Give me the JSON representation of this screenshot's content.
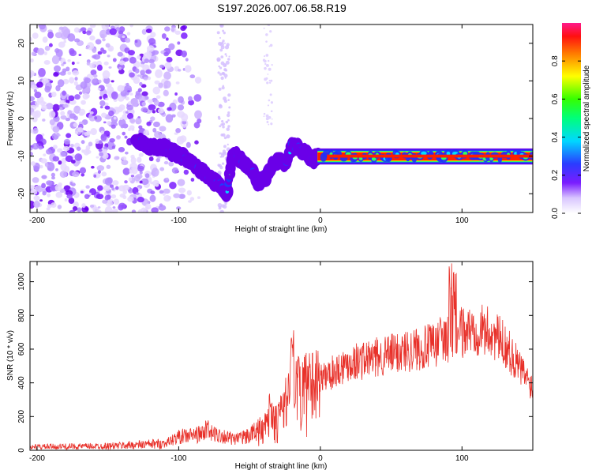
{
  "title": "S197.2026.007.06.58.R19",
  "chart_data": [
    {
      "type": "heatmap",
      "xlabel": "Height of straight line (km)",
      "ylabel": "Frequency (Hz)",
      "xlim": [
        -205,
        150
      ],
      "ylim": [
        -25,
        25
      ],
      "xticks": [
        -200,
        -100,
        0,
        100
      ],
      "xtick_labels": [
        "-200",
        "-100",
        "0",
        "100"
      ],
      "yticks": [
        -20,
        -10,
        0,
        10,
        20
      ],
      "ytick_labels": [
        "-20",
        "-10",
        "0",
        "10",
        "20"
      ],
      "colorbar": {
        "label": "Normalized spectral amplitude",
        "range": [
          0,
          1
        ],
        "ticks": [
          0.0,
          0.2,
          0.4,
          0.6,
          0.8
        ],
        "tick_labels": [
          "0.0",
          "0.2",
          "0.4",
          "0.6",
          "0.8"
        ]
      },
      "ridge": {
        "x": [
          -130,
          -120,
          -110,
          -100,
          -90,
          -80,
          -72,
          -66,
          -62,
          -58,
          -50,
          -44,
          -38,
          -34,
          -30,
          -24,
          -20,
          -15,
          -10,
          -5,
          0,
          5,
          10,
          20,
          40,
          60,
          80,
          100,
          120,
          150
        ],
        "y": [
          -6,
          -7.5,
          -8,
          -9.5,
          -12,
          -15,
          -17.5,
          -20,
          -9,
          -10.5,
          -13,
          -17,
          -15.5,
          -12.5,
          -11.5,
          -12,
          -7,
          -8,
          -9.5,
          -11,
          -9.5,
          -10,
          -10,
          -10,
          -10,
          -10,
          -10,
          -10.5,
          -10,
          -10
        ]
      }
    },
    {
      "type": "line",
      "xlabel": "Height of straight line (km)",
      "ylabel": "SNR (10 * v/v)",
      "xlim": [
        -205,
        150
      ],
      "ylim": [
        0,
        1120
      ],
      "xticks": [
        -200,
        -100,
        0,
        100
      ],
      "xtick_labels": [
        "-200",
        "-100",
        "0",
        "100"
      ],
      "yticks": [
        0,
        200,
        400,
        600,
        800,
        1000
      ],
      "ytick_labels": [
        "0",
        "200",
        "400",
        "600",
        "800",
        "1000"
      ],
      "color": "#e8312a",
      "envelope": {
        "x": [
          -205,
          -150,
          -110,
          -100,
          -90,
          -80,
          -70,
          -60,
          -50,
          -40,
          -30,
          -25,
          -20,
          -15,
          -10,
          0,
          10,
          20,
          40,
          60,
          80,
          90,
          95,
          100,
          110,
          120,
          130,
          140,
          150
        ],
        "y": [
          20,
          25,
          40,
          80,
          90,
          100,
          90,
          60,
          90,
          150,
          200,
          280,
          380,
          330,
          380,
          420,
          470,
          520,
          550,
          590,
          620,
          650,
          690,
          700,
          720,
          700,
          630,
          500,
          370
        ]
      },
      "spikes": [
        {
          "x": -80,
          "y": 180
        },
        {
          "x": -35,
          "y": 340
        },
        {
          "x": -20,
          "y": 760
        },
        {
          "x": -16,
          "y": 560
        },
        {
          "x": 85,
          "y": 820
        },
        {
          "x": 92,
          "y": 1110
        },
        {
          "x": 95,
          "y": 1080
        }
      ]
    }
  ]
}
